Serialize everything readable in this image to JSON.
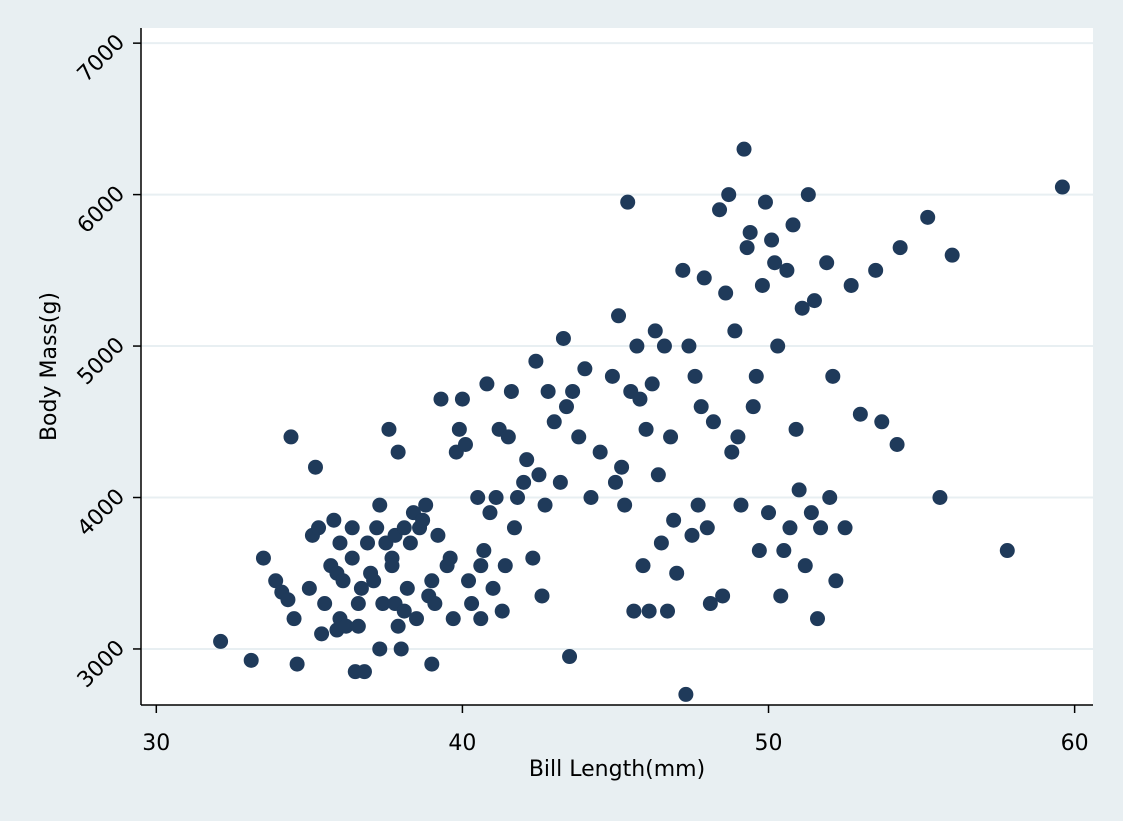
{
  "colors": {
    "page_background": "#e8eff2",
    "plot_background": "#ffffff",
    "gridline": "#e8eff2",
    "marker": "#1f3a5a",
    "axis": "#000000"
  },
  "chart_data": {
    "type": "scatter",
    "title": "",
    "xlabel": "Bill Length(mm)",
    "ylabel": "Body Mass(g)",
    "xlim": [
      29.5,
      60.6
    ],
    "ylim": [
      2630,
      7100
    ],
    "x_ticks": [
      30,
      40,
      50,
      60
    ],
    "x_tick_labels": [
      "30",
      "40",
      "50",
      "60"
    ],
    "y_ticks": [
      3000,
      4000,
      5000,
      6000,
      7000
    ],
    "y_tick_labels": [
      "3000",
      "4000",
      "5000",
      "6000",
      "7000"
    ],
    "grid": "horizontal",
    "legend": "none",
    "points": [
      [
        32.1,
        3050
      ],
      [
        33.1,
        2925
      ],
      [
        33.5,
        3600
      ],
      [
        33.9,
        3450
      ],
      [
        34.1,
        3375
      ],
      [
        34.3,
        3325
      ],
      [
        34.5,
        3200
      ],
      [
        34.4,
        4400
      ],
      [
        34.6,
        2900
      ],
      [
        35.0,
        3400
      ],
      [
        35.1,
        3750
      ],
      [
        35.2,
        4200
      ],
      [
        35.3,
        3800
      ],
      [
        35.4,
        3100
      ],
      [
        35.5,
        3300
      ],
      [
        35.7,
        3550
      ],
      [
        35.8,
        3850
      ],
      [
        35.9,
        3500
      ],
      [
        35.9,
        3125
      ],
      [
        36.0,
        3200
      ],
      [
        36.0,
        3700
      ],
      [
        36.1,
        3450
      ],
      [
        36.2,
        3150
      ],
      [
        36.4,
        3800
      ],
      [
        36.4,
        3600
      ],
      [
        36.5,
        2850
      ],
      [
        36.6,
        3300
      ],
      [
        36.6,
        3150
      ],
      [
        36.7,
        3400
      ],
      [
        36.8,
        2850
      ],
      [
        36.9,
        3700
      ],
      [
        37.0,
        3500
      ],
      [
        37.1,
        3450
      ],
      [
        37.2,
        3800
      ],
      [
        37.3,
        3950
      ],
      [
        37.3,
        3000
      ],
      [
        37.4,
        3300
      ],
      [
        37.5,
        3700
      ],
      [
        37.6,
        4450
      ],
      [
        37.7,
        3600
      ],
      [
        37.7,
        3550
      ],
      [
        37.8,
        3750
      ],
      [
        37.8,
        3300
      ],
      [
        37.9,
        4300
      ],
      [
        37.9,
        3150
      ],
      [
        38.0,
        3000
      ],
      [
        38.1,
        3800
      ],
      [
        38.1,
        3250
      ],
      [
        38.2,
        3400
      ],
      [
        38.3,
        3700
      ],
      [
        38.4,
        3900
      ],
      [
        38.5,
        3200
      ],
      [
        38.6,
        3800
      ],
      [
        38.7,
        3850
      ],
      [
        38.8,
        3950
      ],
      [
        38.9,
        3350
      ],
      [
        39.0,
        3450
      ],
      [
        39.0,
        2900
      ],
      [
        39.1,
        3300
      ],
      [
        39.2,
        3750
      ],
      [
        39.3,
        4650
      ],
      [
        39.5,
        3550
      ],
      [
        39.6,
        3600
      ],
      [
        39.7,
        3200
      ],
      [
        39.8,
        4300
      ],
      [
        39.9,
        4450
      ],
      [
        40.0,
        4650
      ],
      [
        40.1,
        4350
      ],
      [
        40.2,
        3450
      ],
      [
        40.3,
        3300
      ],
      [
        40.5,
        4000
      ],
      [
        40.6,
        3200
      ],
      [
        40.6,
        3550
      ],
      [
        40.7,
        3650
      ],
      [
        40.8,
        4750
      ],
      [
        40.9,
        3900
      ],
      [
        41.0,
        3400
      ],
      [
        41.1,
        4000
      ],
      [
        41.2,
        4450
      ],
      [
        41.3,
        3250
      ],
      [
        41.4,
        3550
      ],
      [
        41.5,
        4400
      ],
      [
        41.6,
        4700
      ],
      [
        41.7,
        3800
      ],
      [
        41.8,
        4000
      ],
      [
        42.0,
        4100
      ],
      [
        42.1,
        4250
      ],
      [
        42.3,
        3600
      ],
      [
        42.4,
        4900
      ],
      [
        42.5,
        4150
      ],
      [
        42.6,
        3350
      ],
      [
        42.7,
        3950
      ],
      [
        42.8,
        4700
      ],
      [
        43.0,
        4500
      ],
      [
        43.2,
        4100
      ],
      [
        43.3,
        5050
      ],
      [
        43.4,
        4600
      ],
      [
        43.5,
        2950
      ],
      [
        43.6,
        4700
      ],
      [
        43.8,
        4400
      ],
      [
        44.0,
        4850
      ],
      [
        44.2,
        4000
      ],
      [
        44.5,
        4300
      ],
      [
        44.9,
        4800
      ],
      [
        45.0,
        4100
      ],
      [
        45.1,
        5200
      ],
      [
        45.2,
        4200
      ],
      [
        45.3,
        3950
      ],
      [
        45.4,
        5950
      ],
      [
        45.5,
        4700
      ],
      [
        45.6,
        3250
      ],
      [
        45.7,
        5000
      ],
      [
        45.8,
        4650
      ],
      [
        45.9,
        3550
      ],
      [
        46.0,
        4450
      ],
      [
        46.1,
        3250
      ],
      [
        46.2,
        4750
      ],
      [
        46.3,
        5100
      ],
      [
        46.4,
        4150
      ],
      [
        46.5,
        3700
      ],
      [
        46.6,
        5000
      ],
      [
        46.7,
        3250
      ],
      [
        46.8,
        4400
      ],
      [
        46.9,
        3850
      ],
      [
        47.0,
        3500
      ],
      [
        47.2,
        5500
      ],
      [
        47.3,
        2700
      ],
      [
        47.4,
        5000
      ],
      [
        47.5,
        3750
      ],
      [
        47.6,
        4800
      ],
      [
        47.7,
        3950
      ],
      [
        47.8,
        4600
      ],
      [
        47.9,
        5450
      ],
      [
        48.0,
        3800
      ],
      [
        48.1,
        3300
      ],
      [
        48.2,
        4500
      ],
      [
        48.4,
        5900
      ],
      [
        48.5,
        3350
      ],
      [
        48.6,
        5350
      ],
      [
        48.7,
        6000
      ],
      [
        48.8,
        4300
      ],
      [
        48.9,
        5100
      ],
      [
        49.0,
        4400
      ],
      [
        49.1,
        3950
      ],
      [
        49.2,
        6300
      ],
      [
        49.3,
        5650
      ],
      [
        49.4,
        5750
      ],
      [
        49.5,
        4600
      ],
      [
        49.6,
        4800
      ],
      [
        49.7,
        3650
      ],
      [
        49.8,
        5400
      ],
      [
        49.9,
        5950
      ],
      [
        50.0,
        3900
      ],
      [
        50.1,
        5700
      ],
      [
        50.2,
        5550
      ],
      [
        50.3,
        5000
      ],
      [
        50.4,
        3350
      ],
      [
        50.5,
        3650
      ],
      [
        50.6,
        5500
      ],
      [
        50.7,
        3800
      ],
      [
        50.8,
        5800
      ],
      [
        50.9,
        4450
      ],
      [
        51.0,
        4050
      ],
      [
        51.1,
        5250
      ],
      [
        51.2,
        3550
      ],
      [
        51.3,
        6000
      ],
      [
        51.4,
        3900
      ],
      [
        51.5,
        5300
      ],
      [
        51.6,
        3200
      ],
      [
        51.7,
        3800
      ],
      [
        51.9,
        5550
      ],
      [
        52.0,
        4000
      ],
      [
        52.1,
        4800
      ],
      [
        52.2,
        3450
      ],
      [
        52.5,
        3800
      ],
      [
        52.7,
        5400
      ],
      [
        53.0,
        4550
      ],
      [
        53.5,
        5500
      ],
      [
        53.7,
        4500
      ],
      [
        54.2,
        4350
      ],
      [
        54.3,
        5650
      ],
      [
        55.2,
        5850
      ],
      [
        55.6,
        4000
      ],
      [
        56.0,
        5600
      ],
      [
        57.8,
        3650
      ],
      [
        59.6,
        6050
      ]
    ]
  }
}
